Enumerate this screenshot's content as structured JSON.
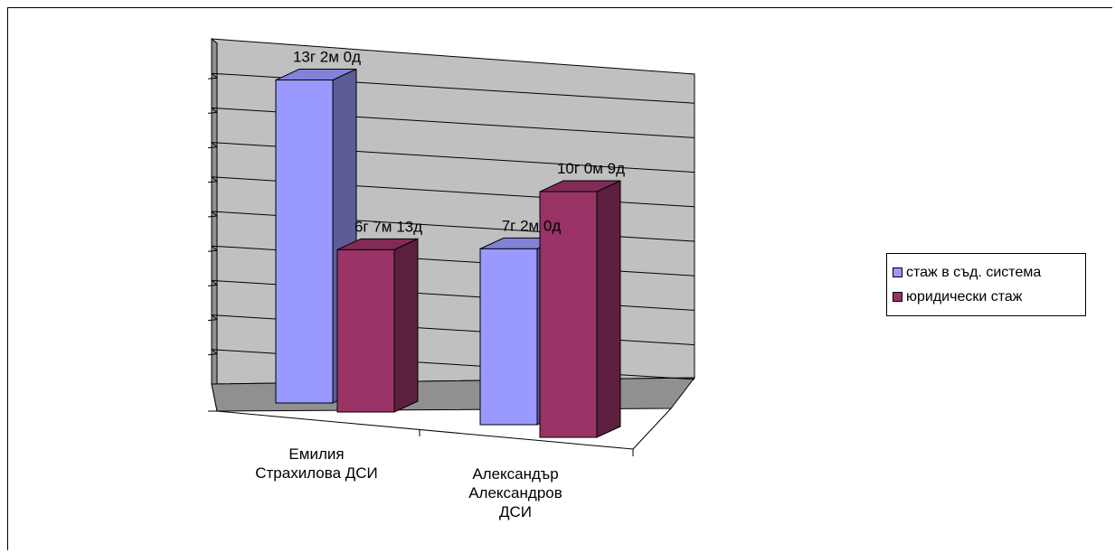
{
  "chart_data": {
    "type": "bar",
    "style": "3d-clustered-column",
    "categories": [
      "Емилия Страхилова ДСИ",
      "Александър Александров ДСИ"
    ],
    "series": [
      {
        "name": "стаж в съд. система",
        "color": "#9999ff",
        "values": [
          13.17,
          7.17
        ],
        "labels": [
          "13г 2м 0д",
          "7г 2м 0д"
        ]
      },
      {
        "name": "юридически стаж",
        "color": "#993366",
        "values": [
          6.62,
          10.02
        ],
        "labels": [
          "6г 7м 13д",
          "10г 0м 9д"
        ]
      }
    ],
    "ylim": [
      0,
      14
    ],
    "grid": true,
    "legend_position": "right",
    "title": "",
    "xlabel": "",
    "ylabel": ""
  }
}
